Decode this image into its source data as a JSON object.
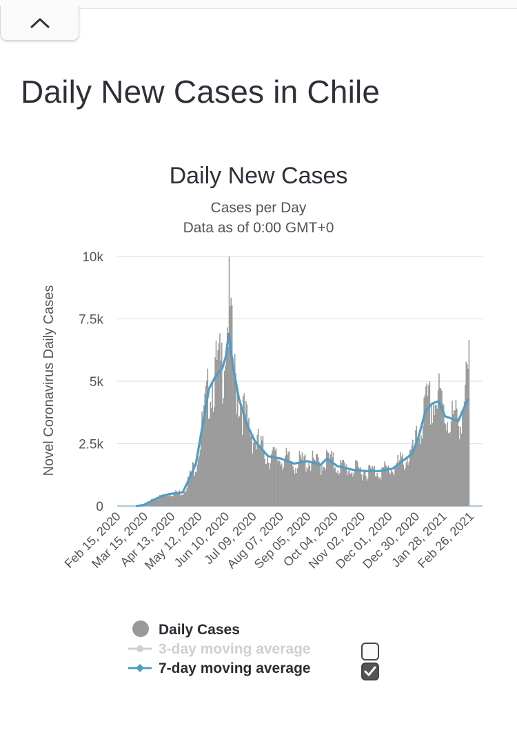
{
  "page": {
    "title": "Daily New Cases in Chile"
  },
  "chart_data": {
    "type": "bar",
    "title": "Daily New Cases",
    "subtitle": "Cases per Day",
    "note": "Data as of 0:00 GMT+0",
    "ylabel": "Novel Coronavirus Daily Cases",
    "ylim": [
      0,
      10000
    ],
    "yticks": [
      0,
      2500,
      5000,
      7500,
      10000
    ],
    "ytick_labels": [
      "0",
      "2.5k",
      "5k",
      "7.5k",
      "10k"
    ],
    "xticks": [
      "Feb 15, 2020",
      "Mar 15, 2020",
      "Apr 13, 2020",
      "May 12, 2020",
      "Jun 10, 2020",
      "Jul 09, 2020",
      "Aug 07, 2020",
      "Sep 05, 2020",
      "Oct 04, 2020",
      "Nov 02, 2020",
      "Dec 01, 2020",
      "Dec 30, 2020",
      "Jan 28, 2021",
      "Feb 26, 2021"
    ],
    "x_start": "Feb 15, 2020",
    "x_end": "Mar 11, 2021",
    "weekly_points": [
      {
        "day": 0,
        "daily": 0,
        "ma7": 0
      },
      {
        "day": 20,
        "daily": 0,
        "ma7": 0
      },
      {
        "day": 28,
        "daily": 50,
        "ma7": 40
      },
      {
        "day": 35,
        "daily": 200,
        "ma7": 170
      },
      {
        "day": 42,
        "daily": 320,
        "ma7": 300
      },
      {
        "day": 49,
        "daily": 420,
        "ma7": 420
      },
      {
        "day": 56,
        "daily": 500,
        "ma7": 480
      },
      {
        "day": 63,
        "daily": 520,
        "ma7": 520
      },
      {
        "day": 70,
        "daily": 560,
        "ma7": 550
      },
      {
        "day": 77,
        "daily": 1200,
        "ma7": 1100
      },
      {
        "day": 84,
        "daily": 1800,
        "ma7": 1700
      },
      {
        "day": 91,
        "daily": 3300,
        "ma7": 3200
      },
      {
        "day": 98,
        "daily": 4800,
        "ma7": 4700
      },
      {
        "day": 105,
        "daily": 5300,
        "ma7": 5200
      },
      {
        "day": 112,
        "daily": 5600,
        "ma7": 5500
      },
      {
        "day": 116,
        "daily": 7000,
        "ma7": 6000
      },
      {
        "day": 119,
        "daily": 8000,
        "ma7": 6900
      },
      {
        "day": 124,
        "daily": 5200,
        "ma7": 5500
      },
      {
        "day": 130,
        "daily": 4300,
        "ma7": 4300
      },
      {
        "day": 138,
        "daily": 3300,
        "ma7": 3300
      },
      {
        "day": 147,
        "daily": 2600,
        "ma7": 2600
      },
      {
        "day": 161,
        "daily": 2000,
        "ma7": 2000
      },
      {
        "day": 175,
        "daily": 1900,
        "ma7": 1900
      },
      {
        "day": 189,
        "daily": 1700,
        "ma7": 1700
      },
      {
        "day": 203,
        "daily": 1800,
        "ma7": 1800
      },
      {
        "day": 217,
        "daily": 1650,
        "ma7": 1650
      },
      {
        "day": 224,
        "daily": 1900,
        "ma7": 1900
      },
      {
        "day": 235,
        "daily": 1600,
        "ma7": 1600
      },
      {
        "day": 252,
        "daily": 1450,
        "ma7": 1450
      },
      {
        "day": 266,
        "daily": 1400,
        "ma7": 1400
      },
      {
        "day": 280,
        "daily": 1400,
        "ma7": 1400
      },
      {
        "day": 294,
        "daily": 1500,
        "ma7": 1500
      },
      {
        "day": 308,
        "daily": 1900,
        "ma7": 1900
      },
      {
        "day": 315,
        "daily": 2100,
        "ma7": 2100
      },
      {
        "day": 322,
        "daily": 2900,
        "ma7": 2800
      },
      {
        "day": 329,
        "daily": 3900,
        "ma7": 3800
      },
      {
        "day": 336,
        "daily": 4100,
        "ma7": 4100
      },
      {
        "day": 343,
        "daily": 4300,
        "ma7": 4200
      },
      {
        "day": 350,
        "daily": 3600,
        "ma7": 3600
      },
      {
        "day": 357,
        "daily": 3500,
        "ma7": 3500
      },
      {
        "day": 364,
        "daily": 3400,
        "ma7": 3400
      },
      {
        "day": 371,
        "daily": 4400,
        "ma7": 4000
      },
      {
        "day": 375,
        "daily": 5300,
        "ma7": 4300
      }
    ],
    "legend": [
      {
        "name": "Daily Cases",
        "color": "#999999",
        "visible": true
      },
      {
        "name": "3-day moving average",
        "color": "#cfcfcf",
        "visible": false
      },
      {
        "name": "7-day moving average",
        "color": "#4e9dc4",
        "visible": true
      }
    ],
    "colors": {
      "bars": "#9b9b9b",
      "line": "#4e9dc4",
      "grid": "#e2e2e2"
    }
  }
}
